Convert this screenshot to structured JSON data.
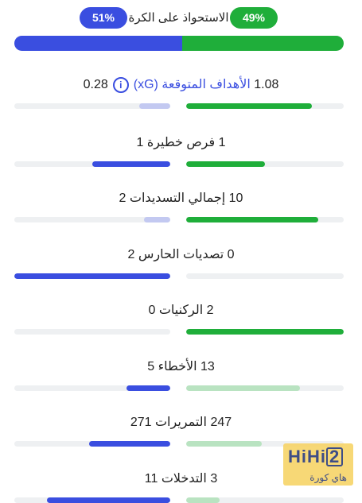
{
  "colors": {
    "home": "#1fae3a",
    "home_light": "#b9e3c1",
    "away": "#3a4ee0",
    "away_light": "#c3c9f1",
    "track": "#eef0f2"
  },
  "possession": {
    "title": "الاستحواذ على الكرة",
    "home_label": "49%",
    "away_label": "51%",
    "home": 49,
    "away": 51
  },
  "stats": [
    {
      "key": "xg",
      "home": "1.08",
      "away": "0.28",
      "label": "الأهداف المتوقعة",
      "label_suffix": "(xG)",
      "home_frac": 0.8,
      "away_frac": 0.2,
      "home_strong": true,
      "away_strong": false,
      "icon": "info-icon"
    },
    {
      "key": "big_chances",
      "home": "1",
      "away": "1",
      "label": "فرص خطيرة",
      "home_frac": 0.5,
      "away_frac": 0.5,
      "home_strong": true,
      "away_strong": true
    },
    {
      "key": "total_shots",
      "home": "10",
      "away": "2",
      "label": "إجمالي التسديدات",
      "home_frac": 0.84,
      "away_frac": 0.17,
      "home_strong": true,
      "away_strong": false
    },
    {
      "key": "saves",
      "home": "0",
      "away": "2",
      "label": "تصديات الحارس",
      "home_frac": 0.0,
      "away_frac": 1.0,
      "home_strong": false,
      "away_strong": true
    },
    {
      "key": "corners",
      "home": "2",
      "away": "0",
      "label": "الركنيات",
      "home_frac": 1.0,
      "away_frac": 0.0,
      "home_strong": true,
      "away_strong": false
    },
    {
      "key": "fouls",
      "home": "13",
      "away": "5",
      "label": "الأخطاء",
      "home_frac": 0.72,
      "away_frac": 0.28,
      "home_strong": false,
      "away_strong": true
    },
    {
      "key": "passes",
      "home": "247",
      "away": "271",
      "label": "التمريرات",
      "home_frac": 0.48,
      "away_frac": 0.52,
      "home_strong": false,
      "away_strong": true
    },
    {
      "key": "tackles",
      "home": "3",
      "away": "11",
      "label": "التدخلات",
      "home_frac": 0.21,
      "away_frac": 0.79,
      "home_strong": false,
      "away_strong": true
    }
  ],
  "watermark": {
    "brand": "HiHi",
    "brand_digit": "2",
    "tagline": "هاي كورة"
  }
}
